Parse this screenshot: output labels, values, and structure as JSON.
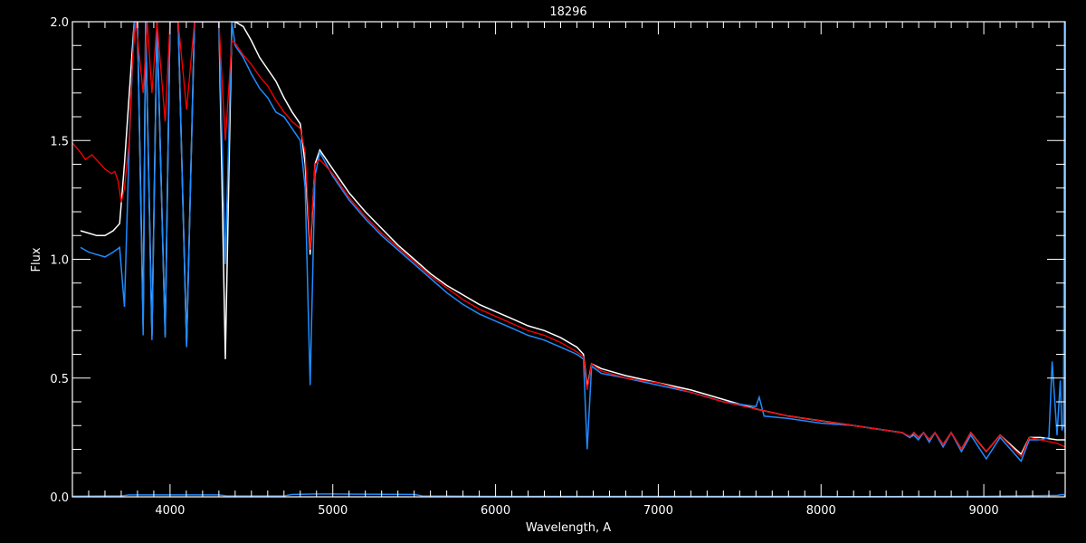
{
  "chart_data": {
    "type": "line",
    "title": "18296",
    "xlabel": "Wavelength, A",
    "ylabel": "Flux",
    "xlim": [
      3400,
      9500
    ],
    "ylim": [
      0.0,
      2.0
    ],
    "xticks": [
      4000,
      5000,
      6000,
      7000,
      8000,
      9000
    ],
    "xtick_labels": [
      "4000",
      "5000",
      "6000",
      "7000",
      "8000",
      "9000"
    ],
    "yticks": [
      0.0,
      0.5,
      1.0,
      1.5,
      2.0
    ],
    "ytick_labels": [
      "0.0",
      "0.5",
      "1.0",
      "1.5",
      "2.0"
    ],
    "x_minor_step": 100,
    "y_minor_step": 0.1,
    "grid": false,
    "background": "#000000",
    "series": [
      {
        "color": "#ffffff",
        "x": [
          3450,
          3500,
          3550,
          3600,
          3650,
          3690,
          3720,
          3750,
          3780,
          3800,
          3835,
          3850,
          3889,
          3920,
          3970,
          4000,
          4050,
          4102,
          4150,
          4250,
          4300,
          4340,
          4380,
          4400,
          4450,
          4500,
          4550,
          4600,
          4650,
          4700,
          4750,
          4800,
          4830,
          4861,
          4890,
          4920,
          5000,
          5100,
          5200,
          5300,
          5400,
          5500,
          5600,
          5700,
          5800,
          5900,
          6000,
          6100,
          6200,
          6300,
          6400,
          6500,
          6540,
          6563,
          6590,
          6650,
          6800,
          7000,
          7200,
          7400,
          7600,
          7800,
          8000,
          8200,
          8400,
          8500,
          8545,
          8570,
          8598,
          8630,
          8665,
          8700,
          8750,
          8800,
          8863,
          8920,
          9015,
          9100,
          9229,
          9280,
          9350,
          9450,
          9500
        ],
        "y": [
          1.12,
          1.11,
          1.1,
          1.1,
          1.12,
          1.15,
          1.4,
          1.7,
          2.0,
          2.0,
          0.72,
          2.0,
          0.68,
          2.0,
          0.68,
          2.0,
          2.0,
          0.64,
          2.0,
          2.0,
          2.0,
          0.58,
          2.0,
          2.0,
          1.98,
          1.92,
          1.85,
          1.8,
          1.75,
          1.68,
          1.62,
          1.57,
          1.4,
          1.02,
          1.4,
          1.46,
          1.38,
          1.28,
          1.2,
          1.13,
          1.06,
          1.0,
          0.94,
          0.89,
          0.85,
          0.81,
          0.78,
          0.75,
          0.72,
          0.7,
          0.67,
          0.63,
          0.6,
          0.46,
          0.56,
          0.54,
          0.51,
          0.48,
          0.45,
          0.41,
          0.37,
          0.34,
          0.32,
          0.3,
          0.28,
          0.27,
          0.25,
          0.27,
          0.25,
          0.27,
          0.24,
          0.27,
          0.22,
          0.27,
          0.2,
          0.27,
          0.19,
          0.26,
          0.18,
          0.25,
          0.25,
          0.24,
          0.24
        ]
      },
      {
        "color": "#1e8cff",
        "x": [
          3450,
          3500,
          3550,
          3600,
          3650,
          3690,
          3720,
          3750,
          3780,
          3800,
          3835,
          3850,
          3889,
          3920,
          3970,
          4000,
          4050,
          4102,
          4150,
          4250,
          4300,
          4340,
          4380,
          4400,
          4450,
          4500,
          4550,
          4600,
          4650,
          4700,
          4750,
          4800,
          4830,
          4861,
          4890,
          4920,
          5000,
          5100,
          5200,
          5300,
          5400,
          5500,
          5600,
          5700,
          5800,
          5900,
          6000,
          6100,
          6200,
          6300,
          6400,
          6500,
          6540,
          6563,
          6590,
          6650,
          6800,
          7000,
          7200,
          7400,
          7600,
          7620,
          7650,
          7800,
          8000,
          8200,
          8400,
          8500,
          8545,
          8570,
          8598,
          8630,
          8665,
          8700,
          8750,
          8800,
          8863,
          8920,
          9015,
          9100,
          9229,
          9280,
          9350,
          9400,
          9420,
          9450,
          9470,
          9480,
          9490,
          9495,
          9500
        ],
        "y": [
          1.05,
          1.03,
          1.02,
          1.01,
          1.03,
          1.05,
          0.8,
          1.5,
          2.0,
          2.0,
          0.68,
          2.0,
          0.66,
          2.0,
          0.67,
          2.0,
          2.0,
          0.63,
          2.0,
          2.0,
          2.0,
          0.98,
          2.0,
          1.9,
          1.85,
          1.78,
          1.72,
          1.68,
          1.62,
          1.6,
          1.55,
          1.5,
          1.3,
          0.47,
          1.35,
          1.45,
          1.35,
          1.25,
          1.17,
          1.1,
          1.04,
          0.98,
          0.92,
          0.86,
          0.81,
          0.77,
          0.74,
          0.71,
          0.68,
          0.66,
          0.63,
          0.6,
          0.58,
          0.2,
          0.55,
          0.52,
          0.5,
          0.47,
          0.44,
          0.4,
          0.38,
          0.42,
          0.34,
          0.33,
          0.31,
          0.3,
          0.28,
          0.27,
          0.25,
          0.26,
          0.24,
          0.27,
          0.23,
          0.27,
          0.21,
          0.27,
          0.19,
          0.26,
          0.16,
          0.25,
          0.15,
          0.24,
          0.24,
          0.25,
          0.57,
          0.26,
          0.49,
          0.28,
          0.3,
          2.0,
          0.27
        ]
      },
      {
        "color": "#ff0000",
        "x": [
          3400,
          3450,
          3480,
          3520,
          3560,
          3600,
          3640,
          3660,
          3680,
          3700,
          3720,
          3750,
          3770,
          3790,
          3835,
          3860,
          3889,
          3920,
          3970,
          4000,
          4050,
          4102,
          4150,
          4250,
          4300,
          4340,
          4380,
          4400,
          4450,
          4500,
          4550,
          4600,
          4650,
          4700,
          4750,
          4800,
          4830,
          4861,
          4890,
          4920,
          5000,
          5100,
          5200,
          5300,
          5400,
          5500,
          5600,
          5700,
          5800,
          5900,
          6000,
          6100,
          6200,
          6300,
          6400,
          6500,
          6540,
          6563,
          6590,
          6650,
          6800,
          7000,
          7200,
          7400,
          7600,
          7800,
          8000,
          8200,
          8400,
          8500,
          8545,
          8570,
          8598,
          8630,
          8665,
          8700,
          8750,
          8800,
          8863,
          8920,
          9015,
          9100,
          9229,
          9280,
          9350,
          9450,
          9500
        ],
        "y": [
          1.49,
          1.45,
          1.42,
          1.44,
          1.41,
          1.38,
          1.36,
          1.37,
          1.33,
          1.24,
          1.3,
          1.5,
          1.85,
          2.0,
          1.7,
          2.0,
          1.7,
          2.0,
          1.58,
          2.0,
          2.0,
          1.63,
          2.0,
          2.0,
          2.0,
          1.5,
          1.92,
          1.91,
          1.86,
          1.82,
          1.77,
          1.73,
          1.67,
          1.62,
          1.58,
          1.55,
          1.45,
          1.04,
          1.4,
          1.42,
          1.36,
          1.26,
          1.18,
          1.11,
          1.05,
          0.99,
          0.93,
          0.88,
          0.83,
          0.79,
          0.76,
          0.73,
          0.7,
          0.68,
          0.65,
          0.61,
          0.59,
          0.45,
          0.56,
          0.53,
          0.5,
          0.48,
          0.44,
          0.4,
          0.37,
          0.34,
          0.32,
          0.3,
          0.28,
          0.27,
          0.255,
          0.27,
          0.25,
          0.27,
          0.24,
          0.27,
          0.22,
          0.27,
          0.2,
          0.27,
          0.19,
          0.26,
          0.17,
          0.25,
          0.24,
          0.225,
          0.21
        ]
      },
      {
        "color": "#1e8cff",
        "x": [
          3400,
          3700,
          3750,
          4300,
          4350,
          4700,
          4750,
          4900,
          5000,
          5500,
          5550,
          6000,
          7000,
          8000,
          8100,
          9000,
          9200,
          9450,
          9490,
          9500
        ],
        "y": [
          0.003,
          0.004,
          0.008,
          0.008,
          0.004,
          0.004,
          0.01,
          0.012,
          0.012,
          0.01,
          0.004,
          0.002,
          0.002,
          0.002,
          0.001,
          0.002,
          0.004,
          0.006,
          0.01,
          0.002
        ]
      }
    ]
  }
}
